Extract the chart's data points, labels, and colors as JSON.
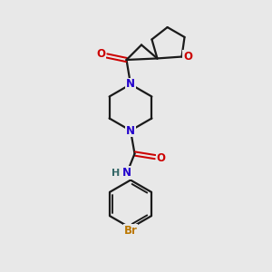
{
  "bg_color": "#e8e8e8",
  "bond_color": "#1a1a1a",
  "N_color": "#2200cc",
  "O_color": "#cc0000",
  "Br_color": "#bb7700",
  "H_color": "#336666",
  "line_width": 1.6,
  "font_size_atom": 8.5,
  "fig_size": [
    3.0,
    3.0
  ],
  "dpi": 100,
  "xlim": [
    0,
    10
  ],
  "ylim": [
    0,
    10
  ]
}
